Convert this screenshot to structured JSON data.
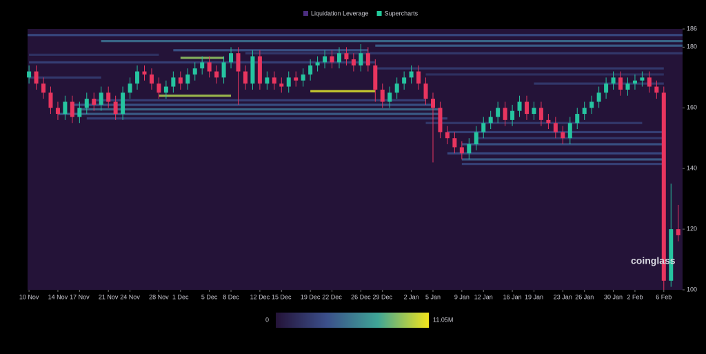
{
  "chart_data": {
    "type": "liquidation-heatmap",
    "legend": [
      {
        "name": "Liquidation Leverage",
        "color": "#4b2d7f"
      },
      {
        "name": "Supercharts",
        "color": "#22c99a"
      }
    ],
    "watermark": "coinglass",
    "xlim": [
      -0.2,
      90.6
    ],
    "xticks": [
      {
        "value": 0,
        "label": "10 Nov"
      },
      {
        "value": 4,
        "label": "14 Nov"
      },
      {
        "value": 7,
        "label": "17 Nov"
      },
      {
        "value": 11,
        "label": "21 Nov"
      },
      {
        "value": 14,
        "label": "24 Nov"
      },
      {
        "value": 18,
        "label": "28 Nov"
      },
      {
        "value": 21,
        "label": "1 Dec"
      },
      {
        "value": 25,
        "label": "5 Dec"
      },
      {
        "value": 28,
        "label": "8 Dec"
      },
      {
        "value": 32,
        "label": "12 Dec"
      },
      {
        "value": 35,
        "label": "15 Dec"
      },
      {
        "value": 39,
        "label": "19 Dec"
      },
      {
        "value": 42,
        "label": "22 Dec"
      },
      {
        "value": 46,
        "label": "26 Dec"
      },
      {
        "value": 49,
        "label": "29 Dec"
      },
      {
        "value": 53,
        "label": "2 Jan"
      },
      {
        "value": 56,
        "label": "5 Jan"
      },
      {
        "value": 60,
        "label": "9 Jan"
      },
      {
        "value": 63,
        "label": "12 Jan"
      },
      {
        "value": 67,
        "label": "16 Jan"
      },
      {
        "value": 70,
        "label": "19 Jan"
      },
      {
        "value": 74,
        "label": "23 Jan"
      },
      {
        "value": 77,
        "label": "26 Jan"
      },
      {
        "value": 81,
        "label": "30 Jan"
      },
      {
        "value": 84,
        "label": "2 Feb"
      },
      {
        "value": 88,
        "label": "6 Feb"
      }
    ],
    "ylim": [
      100,
      186
    ],
    "yticks": [
      100,
      120,
      140,
      160,
      180,
      186
    ],
    "colormap": [
      "#241338",
      "#3b4f8a",
      "#3fa596",
      "#f2e41c"
    ],
    "colorbar_ticks": [
      0,
      {
        "value": 11050000,
        "label": "11.05M"
      }
    ],
    "up_color": "#26c4a0",
    "down_color": "#e8355f",
    "levels": [
      {
        "y": 184,
        "x0": -0.2,
        "x1": 90.6,
        "value": 3500000
      },
      {
        "y": 182,
        "x0": 10,
        "x1": 90.6,
        "value": 5000000
      },
      {
        "y": 180.5,
        "x0": 48,
        "x1": 90.6,
        "value": 4500000
      },
      {
        "y": 179,
        "x0": 20,
        "x1": 47,
        "value": 4000000
      },
      {
        "y": 178,
        "x0": 30,
        "x1": 90.6,
        "value": 2500000
      },
      {
        "y": 176.5,
        "x0": 21,
        "x1": 27,
        "value": 9000000
      },
      {
        "y": 175,
        "x0": 0,
        "x1": 48,
        "value": 3000000
      },
      {
        "y": 173,
        "x0": 48,
        "x1": 88,
        "value": 2500000
      },
      {
        "y": 171,
        "x0": 55,
        "x1": 88,
        "value": 2000000
      },
      {
        "y": 168,
        "x0": 70,
        "x1": 88,
        "value": 2500000
      },
      {
        "y": 165.5,
        "x0": 39,
        "x1": 48,
        "value": 10500000
      },
      {
        "y": 164,
        "x0": 18,
        "x1": 28,
        "value": 9500000
      },
      {
        "y": 162.5,
        "x0": 9,
        "x1": 55,
        "value": 3000000
      },
      {
        "y": 161,
        "x0": 6,
        "x1": 56,
        "value": 4000000
      },
      {
        "y": 159.5,
        "x0": 7,
        "x1": 57,
        "value": 5000000
      },
      {
        "y": 158,
        "x0": 4,
        "x1": 57,
        "value": 4500000
      },
      {
        "y": 156.5,
        "x0": 8,
        "x1": 58,
        "value": 3000000
      },
      {
        "y": 155,
        "x0": 55,
        "x1": 85,
        "value": 2500000
      },
      {
        "y": 152,
        "x0": 58,
        "x1": 88,
        "value": 3000000
      },
      {
        "y": 150,
        "x0": 62,
        "x1": 88,
        "value": 2500000
      },
      {
        "y": 148,
        "x0": 60,
        "x1": 88,
        "value": 4000000
      },
      {
        "y": 145,
        "x0": 58,
        "x1": 88,
        "value": 3500000
      },
      {
        "y": 143,
        "x0": 60,
        "x1": 88,
        "value": 4500000
      },
      {
        "y": 141.5,
        "x0": 60,
        "x1": 88,
        "value": 3000000
      },
      {
        "y": 177.5,
        "x0": 0,
        "x1": 18,
        "value": 2000000
      },
      {
        "y": 170,
        "x0": 0,
        "x1": 10,
        "value": 2500000
      }
    ],
    "candles": {
      "x": [
        0,
        1,
        2,
        3,
        4,
        5,
        6,
        7,
        8,
        9,
        10,
        11,
        12,
        13,
        14,
        15,
        16,
        17,
        18,
        19,
        20,
        21,
        22,
        23,
        24,
        25,
        26,
        27,
        28,
        29,
        30,
        31,
        32,
        33,
        34,
        35,
        36,
        37,
        38,
        39,
        40,
        41,
        42,
        43,
        44,
        45,
        46,
        47,
        48,
        49,
        50,
        51,
        52,
        53,
        54,
        55,
        56,
        57,
        58,
        59,
        60,
        61,
        62,
        63,
        64,
        65,
        66,
        67,
        68,
        69,
        70,
        71,
        72,
        73,
        74,
        75,
        76,
        77,
        78,
        79,
        80,
        81,
        82,
        83,
        84,
        85,
        86,
        87,
        88,
        89,
        90
      ],
      "open": [
        170,
        172,
        168,
        165,
        160,
        158,
        162,
        157,
        160,
        163,
        161,
        165,
        162,
        158,
        165,
        168,
        172,
        171,
        168,
        165,
        167,
        170,
        168,
        171,
        173,
        175,
        172,
        170,
        175,
        178,
        172,
        168,
        177,
        168,
        170,
        168,
        167,
        170,
        169,
        171,
        174,
        175,
        177,
        175,
        178,
        176,
        174,
        178,
        174,
        166,
        162,
        165,
        168,
        170,
        172,
        168,
        163,
        160,
        152,
        150,
        147,
        145,
        148,
        152,
        155,
        157,
        160,
        156,
        159,
        162,
        158,
        160,
        156,
        155,
        152,
        150,
        155,
        158,
        160,
        162,
        165,
        168,
        170,
        166,
        168,
        169,
        170,
        167,
        165,
        103,
        120
      ],
      "high": [
        174,
        174,
        170,
        167,
        162,
        164,
        164,
        162,
        165,
        165,
        167,
        167,
        164,
        167,
        170,
        174,
        174,
        173,
        170,
        169,
        172,
        172,
        173,
        175,
        177,
        177,
        174,
        177,
        180,
        180,
        174,
        179,
        179,
        172,
        172,
        170,
        172,
        172,
        173,
        176,
        177,
        179,
        179,
        180,
        180,
        178,
        181,
        180,
        176,
        168,
        167,
        170,
        172,
        174,
        174,
        170,
        165,
        162,
        154,
        152,
        149,
        150,
        154,
        157,
        159,
        162,
        162,
        161,
        164,
        164,
        162,
        162,
        158,
        157,
        154,
        157,
        160,
        162,
        164,
        167,
        170,
        172,
        172,
        170,
        171,
        172,
        172,
        169,
        167,
        135,
        128
      ],
      "low": [
        168,
        166,
        163,
        158,
        156,
        156,
        155,
        155,
        158,
        159,
        159,
        160,
        156,
        156,
        163,
        166,
        169,
        166,
        163,
        163,
        165,
        166,
        166,
        169,
        171,
        170,
        168,
        168,
        173,
        161,
        166,
        166,
        166,
        166,
        166,
        165,
        165,
        167,
        167,
        169,
        172,
        173,
        173,
        173,
        174,
        172,
        172,
        172,
        162,
        160,
        160,
        163,
        166,
        168,
        166,
        161,
        142,
        150,
        148,
        145,
        143,
        143,
        146,
        150,
        153,
        155,
        154,
        154,
        157,
        156,
        156,
        154,
        153,
        150,
        148,
        148,
        153,
        156,
        158,
        160,
        163,
        166,
        164,
        164,
        166,
        167,
        165,
        163,
        100,
        101,
        116
      ],
      "close": [
        172,
        168,
        165,
        160,
        158,
        162,
        157,
        160,
        163,
        161,
        165,
        162,
        158,
        165,
        168,
        172,
        171,
        168,
        165,
        167,
        170,
        168,
        171,
        173,
        175,
        172,
        170,
        175,
        178,
        172,
        168,
        177,
        168,
        170,
        168,
        167,
        170,
        169,
        171,
        174,
        175,
        177,
        175,
        178,
        176,
        174,
        178,
        174,
        166,
        162,
        165,
        168,
        170,
        172,
        168,
        163,
        160,
        152,
        150,
        147,
        145,
        148,
        152,
        155,
        157,
        160,
        156,
        159,
        162,
        158,
        160,
        156,
        155,
        152,
        150,
        155,
        158,
        160,
        162,
        165,
        168,
        170,
        166,
        168,
        169,
        170,
        167,
        165,
        103,
        120,
        118
      ]
    }
  }
}
